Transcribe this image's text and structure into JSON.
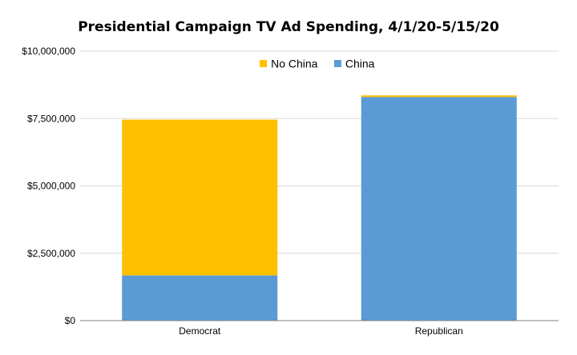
{
  "chart_data": {
    "type": "bar",
    "stacked": true,
    "title": "Presidential Campaign TV Ad Spending, 4/1/20-5/15/20",
    "xlabel": "",
    "ylabel": "",
    "categories": [
      "Democrat",
      "Republican"
    ],
    "series": [
      {
        "name": "China",
        "color": "#5b9bd5",
        "values": [
          1680000,
          8300000
        ]
      },
      {
        "name": "No China",
        "color": "#ffc000",
        "values": [
          5780000,
          60000
        ]
      }
    ],
    "legend_order": [
      "No China",
      "China"
    ],
    "legend_position": "top-center",
    "ylim": [
      0,
      10000000
    ],
    "yticks": [
      0,
      2500000,
      5000000,
      7500000,
      10000000
    ],
    "ytick_labels": [
      "$0",
      "$2,500,000",
      "$5,000,000",
      "$7,500,000",
      "$10,000,000"
    ],
    "grid": true
  }
}
